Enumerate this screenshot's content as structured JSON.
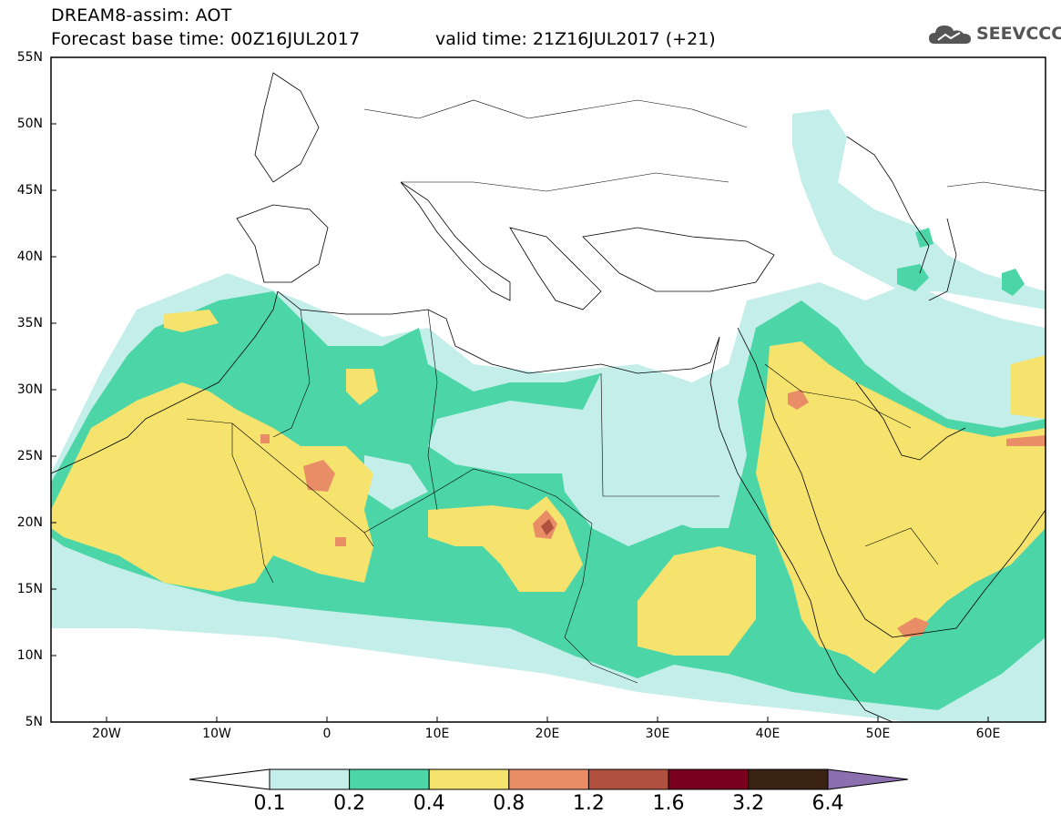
{
  "header": {
    "line1": "DREAM8-assim: AOT",
    "line2": "Forecast base time: 00Z16JUL2017",
    "valid": "valid time: 21Z16JUL2017 (+21)",
    "logo_text": "SEEVCCC"
  },
  "map": {
    "lat_labels": [
      "55N",
      "50N",
      "45N",
      "40N",
      "35N",
      "30N",
      "25N",
      "20N",
      "15N",
      "10N",
      "5N"
    ],
    "lon_labels": [
      "20W",
      "10W",
      "0",
      "10E",
      "20E",
      "30E",
      "40E",
      "50E",
      "60E"
    ],
    "colors": {
      "c01": "#c4eeea",
      "c02": "#4cd6a8",
      "c04": "#f5e36e",
      "c08": "#e88d66",
      "c12": "#b0503e",
      "c16": "#7a0020",
      "c32": "#3a2312",
      "c64": "#8b6fb0"
    }
  },
  "colorbar": {
    "labels": [
      "0.1",
      "0.2",
      "0.4",
      "0.8",
      "1.2",
      "1.6",
      "3.2",
      "6.4"
    ],
    "colors": [
      "#c4eeea",
      "#4cd6a8",
      "#f5e36e",
      "#e88d66",
      "#b0503e",
      "#7a0020",
      "#3a2312"
    ],
    "over_color": "#8b6fb0",
    "under_color": "#ffffff"
  }
}
